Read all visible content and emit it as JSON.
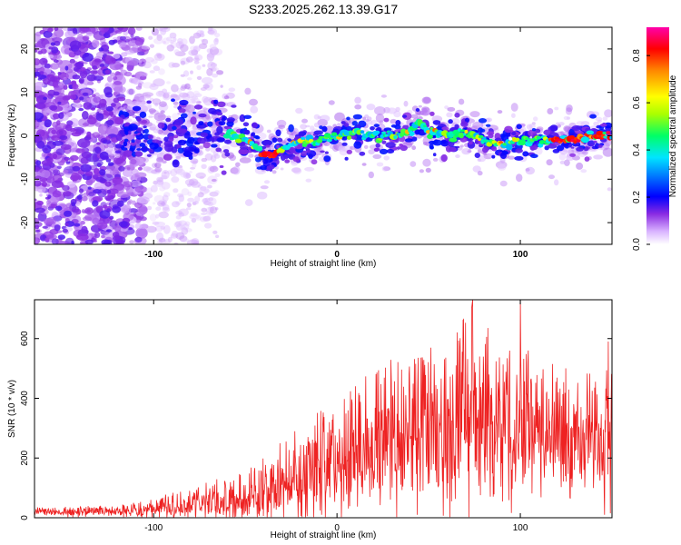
{
  "figure": {
    "title": "S233.2025.262.13.39.G17"
  },
  "colors": {
    "snr_line": "#ee2222",
    "frame": "#000000",
    "background": "#ffffff",
    "colormap": [
      "#f2e6ff",
      "#c89af0",
      "#8a2be2",
      "#0000ff",
      "#00bfff",
      "#00ff66",
      "#aaff00",
      "#ffff00",
      "#ff8800",
      "#ff0000",
      "#ff00aa"
    ]
  },
  "chart_data": [
    {
      "type": "heatmap",
      "name": "spectrogram",
      "title": "S233.2025.262.13.39.G17",
      "xlabel": "Height of straight line (km)",
      "ylabel": "Frequency (Hz)",
      "xlim": [
        -165,
        150
      ],
      "ylim": [
        -25,
        25
      ],
      "xticks": [
        -100,
        0,
        100
      ],
      "xtick_labels": [
        "-100",
        "0",
        "100"
      ],
      "yticks": [
        -20,
        -10,
        0,
        10,
        20
      ],
      "ytick_labels": [
        "-20",
        "-10",
        "0",
        "10",
        "20"
      ],
      "colorbar": {
        "label": "Normalized spectral amplitude",
        "range": [
          0.0,
          0.92
        ],
        "ticks": [
          0.0,
          0.2,
          0.4,
          0.6,
          0.8
        ],
        "tick_labels": [
          "0.0",
          "0.2",
          "0.4",
          "0.6",
          "0.8"
        ]
      },
      "ridge": {
        "description": "dominant frequency track",
        "x": [
          -115,
          -100,
          -80,
          -65,
          -55,
          -45,
          -40,
          -35,
          -30,
          -20,
          -10,
          0,
          10,
          20,
          30,
          40,
          45,
          50,
          60,
          70,
          80,
          90,
          100,
          110,
          120,
          130,
          140,
          150
        ],
        "y": [
          0,
          0,
          0,
          2,
          0,
          -2,
          -4,
          -5,
          -3,
          -1,
          -1,
          0,
          1,
          0,
          0,
          1,
          3,
          1,
          0,
          1,
          -1,
          -2,
          -1,
          -1,
          -1,
          -1,
          0,
          0
        ]
      }
    },
    {
      "type": "line",
      "name": "snr",
      "xlabel": "Height of straight line (km)",
      "ylabel": "SNR (10 * v/v)",
      "xlim": [
        -165,
        150
      ],
      "ylim": [
        0,
        730
      ],
      "xticks": [
        -100,
        0,
        100
      ],
      "xtick_labels": [
        "-100",
        "0",
        "100"
      ],
      "yticks": [
        0,
        200,
        400,
        600
      ],
      "ytick_labels": [
        "0",
        "200",
        "400",
        "600"
      ],
      "envelope": {
        "x": [
          -165,
          -140,
          -120,
          -105,
          -95,
          -80,
          -60,
          -45,
          -35,
          -25,
          -15,
          -5,
          5,
          15,
          25,
          35,
          45,
          55,
          65,
          75,
          85,
          95,
          105,
          115,
          125,
          135,
          145,
          150
        ],
        "mean": [
          18,
          20,
          22,
          26,
          32,
          45,
          60,
          80,
          100,
          120,
          140,
          170,
          200,
          240,
          270,
          290,
          300,
          310,
          320,
          330,
          320,
          310,
          300,
          290,
          290,
          290,
          280,
          300
        ],
        "max": [
          35,
          38,
          42,
          55,
          75,
          100,
          140,
          180,
          230,
          280,
          330,
          380,
          410,
          470,
          520,
          540,
          560,
          580,
          620,
          730,
          600,
          560,
          560,
          520,
          500,
          480,
          520,
          590
        ]
      },
      "spikes": [
        {
          "x": 74,
          "y": 730
        },
        {
          "x": 100,
          "y": 730
        },
        {
          "x": 148,
          "y": 590
        },
        {
          "x": 146,
          "y": 10
        },
        {
          "x": 149,
          "y": 15
        }
      ]
    }
  ]
}
